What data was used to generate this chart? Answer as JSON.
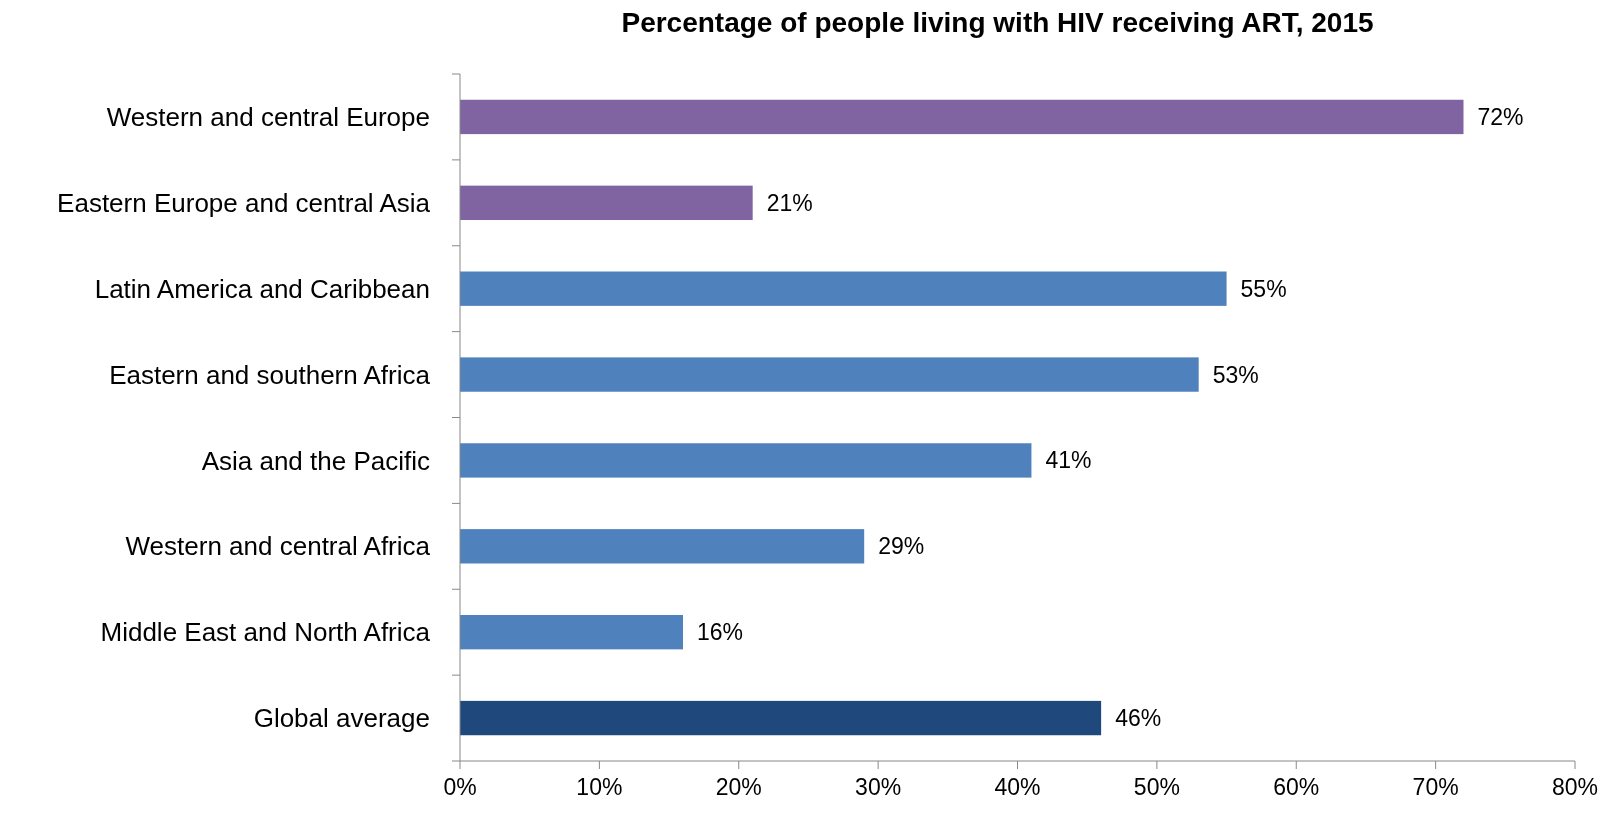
{
  "chart_data": {
    "type": "bar",
    "orientation": "horizontal",
    "title": "Percentage of people living with HIV receiving ART, 2015",
    "categories": [
      "Western and central Europe",
      "Eastern Europe and central Asia",
      "Latin America and Caribbean",
      "Eastern and southern Africa",
      "Asia and the Pacific",
      "Western and central Africa",
      "Middle East and North Africa",
      "Global average"
    ],
    "values": [
      72,
      21,
      55,
      53,
      41,
      29,
      16,
      46
    ],
    "colors": [
      "#8064a2",
      "#8064a2",
      "#4f81bd",
      "#4f81bd",
      "#4f81bd",
      "#4f81bd",
      "#4f81bd",
      "#1f497d"
    ],
    "value_labels": [
      "72%",
      "21%",
      "55%",
      "53%",
      "41%",
      "29%",
      "16%",
      "46%"
    ],
    "xlim": [
      0,
      80
    ],
    "xticks": [
      {
        "value": 0,
        "label": "0%"
      },
      {
        "value": 10,
        "label": "10%"
      },
      {
        "value": 20,
        "label": "20%"
      },
      {
        "value": 30,
        "label": "30%"
      },
      {
        "value": 40,
        "label": "40%"
      },
      {
        "value": 50,
        "label": "50%"
      },
      {
        "value": 60,
        "label": "60%"
      },
      {
        "value": 70,
        "label": "70%"
      },
      {
        "value": 80,
        "label": "80%"
      }
    ],
    "grid": false
  }
}
